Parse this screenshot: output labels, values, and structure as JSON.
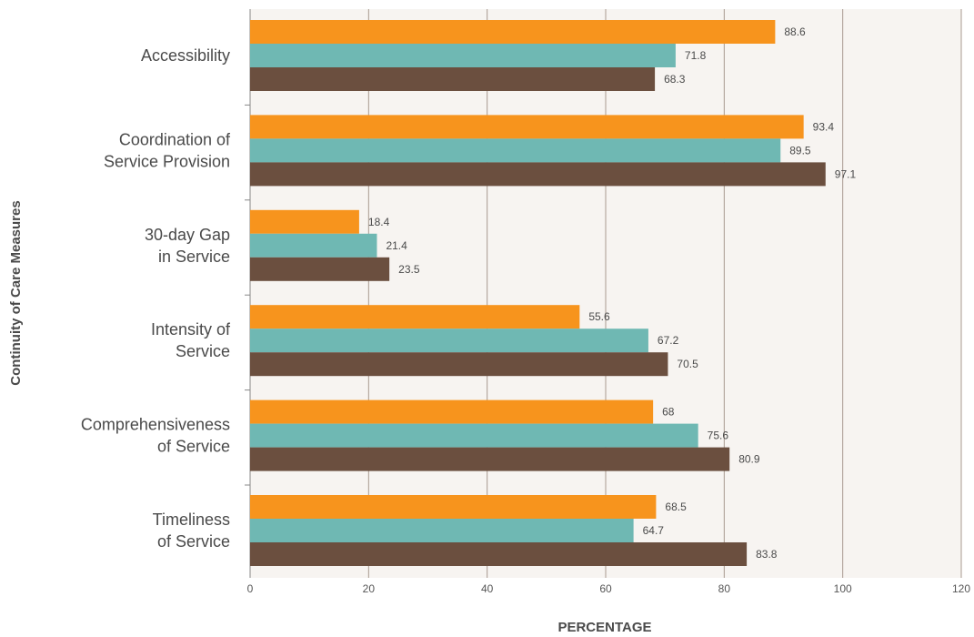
{
  "chart_data": {
    "type": "bar",
    "orientation": "horizontal",
    "title": "",
    "xlabel": "PERCENTAGE",
    "ylabel": "Continuity of Care Measures",
    "xlim": [
      0,
      120
    ],
    "x_ticks": [
      0,
      20,
      40,
      60,
      80,
      100,
      120
    ],
    "grid": true,
    "legend": "none",
    "categories": [
      [
        "Accessibility"
      ],
      [
        "Coordination of",
        "Service Provision"
      ],
      [
        "30-day Gap",
        "in Service"
      ],
      [
        "Intensity of",
        "Service"
      ],
      [
        "Comprehensiveness",
        "of Service"
      ],
      [
        "Timeliness",
        "of Service"
      ]
    ],
    "series": [
      {
        "color": "#f7941d",
        "values": [
          88.6,
          93.4,
          18.4,
          55.6,
          68,
          68.5
        ]
      },
      {
        "color": "#6fb8b3",
        "values": [
          71.8,
          89.5,
          21.4,
          67.2,
          75.6,
          64.7
        ]
      },
      {
        "color": "#6b4f3f",
        "values": [
          68.3,
          97.1,
          23.5,
          70.5,
          80.9,
          83.8
        ]
      }
    ],
    "plot_background": "#f7f4f1",
    "gridline_color": "#a89a90"
  }
}
